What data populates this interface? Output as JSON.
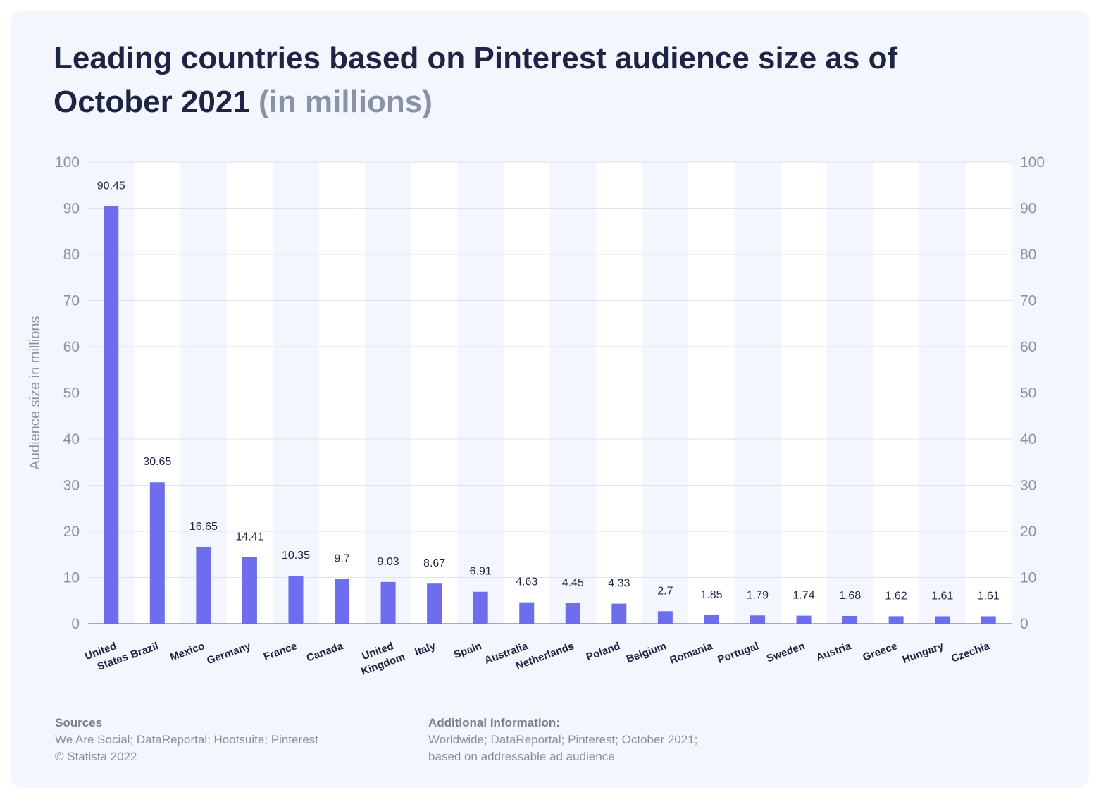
{
  "title": "Leading countries based on Pinterest audience size as of October 2021",
  "title_unit": "(in millions)",
  "chart_data": {
    "type": "bar",
    "categories": [
      "United States",
      "Brazil",
      "Mexico",
      "Germany",
      "France",
      "Canada",
      "United Kingdom",
      "Italy",
      "Spain",
      "Australia",
      "Netherlands",
      "Poland",
      "Belgium",
      "Romania",
      "Portugal",
      "Sweden",
      "Austria",
      "Greece",
      "Hungary",
      "Czechia"
    ],
    "category_lines": [
      [
        "United",
        "States"
      ],
      [
        "Brazil"
      ],
      [
        "Mexico"
      ],
      [
        "Germany"
      ],
      [
        "France"
      ],
      [
        "Canada"
      ],
      [
        "United",
        "Kingdom"
      ],
      [
        "Italy"
      ],
      [
        "Spain"
      ],
      [
        "Australia"
      ],
      [
        "Netherlands"
      ],
      [
        "Poland"
      ],
      [
        "Belgium"
      ],
      [
        "Romania"
      ],
      [
        "Portugal"
      ],
      [
        "Sweden"
      ],
      [
        "Austria"
      ],
      [
        "Greece"
      ],
      [
        "Hungary"
      ],
      [
        "Czechia"
      ]
    ],
    "values": [
      90.45,
      30.65,
      16.65,
      14.41,
      10.35,
      9.7,
      9.03,
      8.67,
      6.91,
      4.63,
      4.45,
      4.33,
      2.7,
      1.85,
      1.79,
      1.74,
      1.68,
      1.62,
      1.61,
      1.61
    ],
    "value_labels": [
      "90.45",
      "30.65",
      "16.65",
      "14.41",
      "10.35",
      "9.7",
      "9.03",
      "8.67",
      "6.91",
      "4.63",
      "4.45",
      "4.33",
      "2.7",
      "1.85",
      "1.79",
      "1.74",
      "1.68",
      "1.62",
      "1.61",
      "1.61"
    ],
    "ylabel": "Audience size in millions",
    "ylim": [
      0,
      100
    ],
    "yticks": [
      0,
      10,
      20,
      30,
      40,
      50,
      60,
      70,
      80,
      90,
      100
    ],
    "colors": {
      "bar": "#6d6ded",
      "grid": "#dfe3ee",
      "band_light": "#ffffff",
      "band_dark": "#f3f6fd",
      "axis_text": "#8a93a6",
      "label_text": "#1e2443"
    }
  },
  "footer": {
    "sources_heading": "Sources",
    "sources_text": "We Are Social; DataReportal; Hootsuite; Pinterest",
    "copyright": "© Statista 2022",
    "info_heading": "Additional Information:",
    "info_line1": "Worldwide; DataReportal; Pinterest; October 2021;",
    "info_line2": "based on addressable ad audience"
  }
}
